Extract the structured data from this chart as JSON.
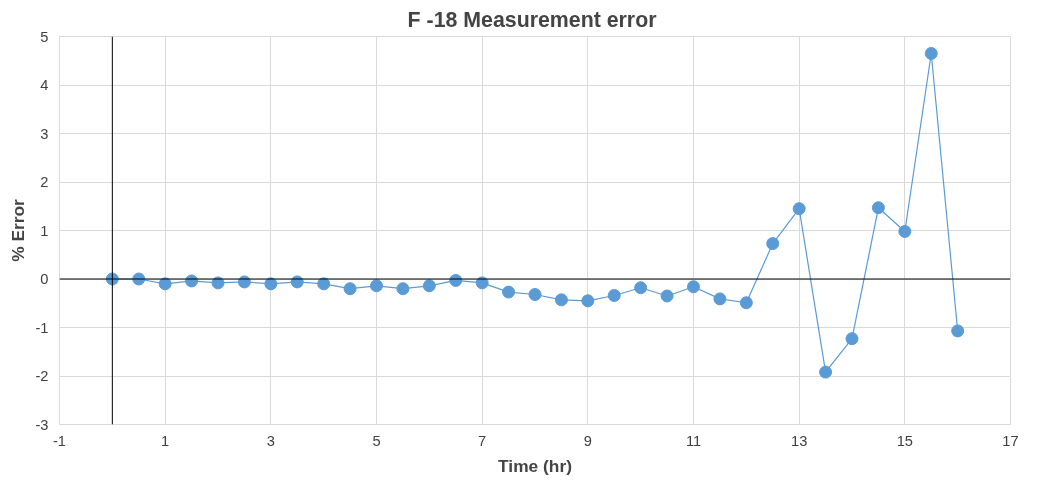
{
  "chart_data": {
    "type": "line",
    "title": "F -18  Measurement error",
    "xlabel": "Time (hr)",
    "ylabel": "% Error",
    "x": [
      0,
      0.5,
      1,
      1.5,
      2,
      2.5,
      3,
      3.5,
      4,
      4.5,
      5,
      5.5,
      6,
      6.5,
      7,
      7.5,
      8,
      8.5,
      9,
      9.5,
      10,
      10.5,
      11,
      11.5,
      12,
      12.5,
      13,
      13.5,
      14,
      14.5,
      15,
      15.5,
      16
    ],
    "series": [
      {
        "color": "#5b9bd5",
        "values": [
          0,
          0,
          -0.1,
          -0.04,
          -0.08,
          -0.06,
          -0.1,
          -0.06,
          -0.1,
          -0.2,
          -0.14,
          -0.2,
          -0.14,
          -0.03,
          -0.08,
          -0.27,
          -0.32,
          -0.43,
          -0.45,
          -0.34,
          -0.18,
          -0.35,
          -0.16,
          -0.41,
          -0.49,
          0.73,
          1.45,
          -1.92,
          -1.23,
          1.47,
          0.98,
          4.65,
          -1.07
        ]
      }
    ],
    "xlim": [
      -1,
      17
    ],
    "xticks": [
      -1,
      1,
      3,
      5,
      7,
      9,
      11,
      13,
      15,
      17
    ],
    "ylim": [
      -3,
      5
    ],
    "yticks": [
      -3,
      -2,
      -1,
      0,
      1,
      2,
      3,
      4,
      5
    ],
    "grid": true,
    "marker": "circle",
    "line_style": "solid"
  }
}
